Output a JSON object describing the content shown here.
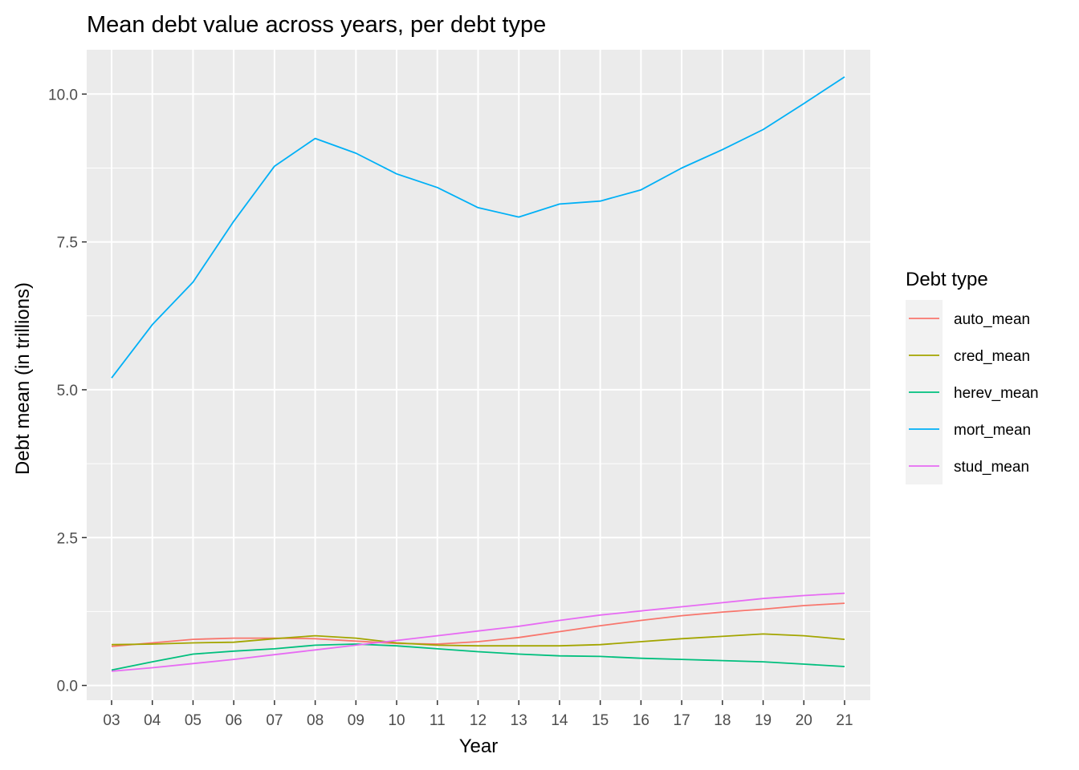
{
  "chart_data": {
    "type": "line",
    "title": "Mean debt value across years, per debt type",
    "xlabel": "Year",
    "ylabel": "Debt mean (in trillions)",
    "x": [
      "03",
      "04",
      "05",
      "06",
      "07",
      "08",
      "09",
      "10",
      "11",
      "12",
      "13",
      "14",
      "15",
      "16",
      "17",
      "18",
      "19",
      "20",
      "21"
    ],
    "ylim": [
      -0.25,
      10.75
    ],
    "yticks": [
      0.0,
      2.5,
      5.0,
      7.5,
      10.0
    ],
    "ytick_labels": [
      "0.0",
      "2.5",
      "5.0",
      "7.5",
      "10.0"
    ],
    "grid": true,
    "panel_background": "#ebebeb",
    "legend": {
      "title": "Debt type",
      "placement": "right"
    },
    "series": [
      {
        "name": "auto_mean",
        "color": "#F8766D",
        "values": [
          0.66,
          0.72,
          0.78,
          0.8,
          0.8,
          0.79,
          0.75,
          0.71,
          0.7,
          0.74,
          0.81,
          0.91,
          1.01,
          1.1,
          1.18,
          1.24,
          1.29,
          1.35,
          1.39
        ]
      },
      {
        "name": "cred_mean",
        "color": "#A3A500",
        "values": [
          0.69,
          0.7,
          0.72,
          0.73,
          0.79,
          0.84,
          0.8,
          0.72,
          0.68,
          0.67,
          0.67,
          0.67,
          0.69,
          0.74,
          0.79,
          0.83,
          0.87,
          0.84,
          0.78
        ]
      },
      {
        "name": "herev_mean",
        "color": "#00BF7D",
        "values": [
          0.26,
          0.4,
          0.53,
          0.58,
          0.62,
          0.68,
          0.7,
          0.67,
          0.62,
          0.57,
          0.53,
          0.5,
          0.49,
          0.46,
          0.44,
          0.42,
          0.4,
          0.36,
          0.32
        ]
      },
      {
        "name": "mort_mean",
        "color": "#00B0F6",
        "values": [
          5.2,
          6.1,
          6.82,
          7.85,
          8.78,
          9.25,
          9.0,
          8.65,
          8.42,
          8.08,
          7.92,
          8.14,
          8.19,
          8.38,
          8.75,
          9.06,
          9.4,
          9.84,
          10.29
        ]
      },
      {
        "name": "stud_mean",
        "color": "#E76BF3",
        "values": [
          0.24,
          0.3,
          0.37,
          0.44,
          0.52,
          0.6,
          0.68,
          0.76,
          0.84,
          0.92,
          1.0,
          1.1,
          1.19,
          1.26,
          1.33,
          1.4,
          1.47,
          1.52,
          1.56
        ]
      }
    ]
  }
}
